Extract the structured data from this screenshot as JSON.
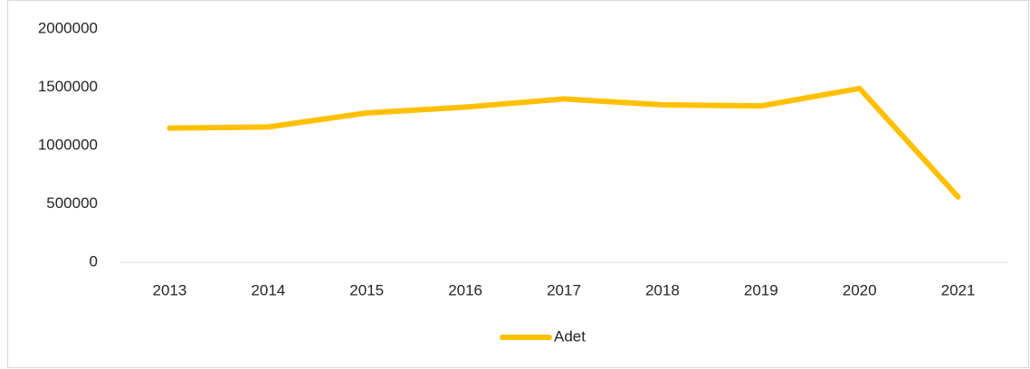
{
  "chart_data": {
    "type": "line",
    "categories": [
      "2013",
      "2014",
      "2015",
      "2016",
      "2017",
      "2018",
      "2019",
      "2020",
      "2021"
    ],
    "series": [
      {
        "name": "Adet",
        "color": "#ffc000",
        "values": [
          1150000,
          1160000,
          1280000,
          1330000,
          1400000,
          1350000,
          1340000,
          1490000,
          560000
        ]
      }
    ],
    "ylim": [
      0,
      2000000
    ],
    "yticks": [
      0,
      500000,
      1000000,
      1500000,
      2000000
    ],
    "grid": false,
    "legend": "bottom"
  }
}
